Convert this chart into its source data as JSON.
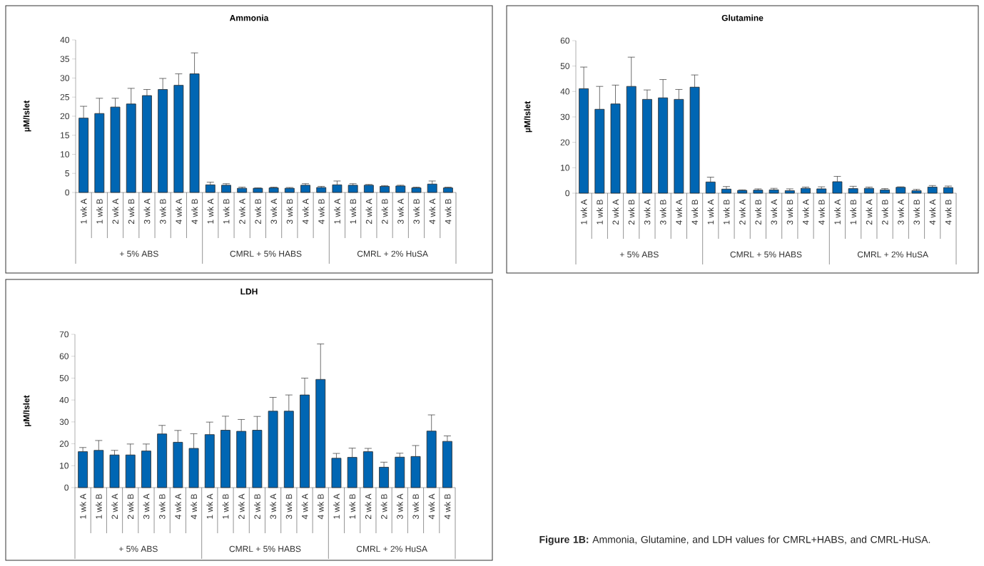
{
  "chart_data": [
    {
      "type": "bar",
      "title": "Ammonia",
      "ylabel": "µM/Islet",
      "color": "#0066b3",
      "ylim": [
        0,
        40
      ],
      "yticks": [
        0,
        5,
        10,
        15,
        20,
        25,
        30,
        35,
        40
      ],
      "categories": [
        "1 wk A",
        "1 wk B",
        "2 wk A",
        "2 wk B",
        "3 wk A",
        "3 wk B",
        "4 wk A",
        "4 wk B",
        "1 wk A",
        "1 wk B",
        "2 wk A",
        "2 wk B",
        "3 wk A",
        "3 wk B",
        "4 wk A",
        "4 wk B",
        "1 wk A",
        "1 wk B",
        "2 wk A",
        "2 wk B",
        "3 wk A",
        "3 wk B",
        "4 wk A",
        "4 wk B"
      ],
      "values": [
        19.5,
        20.7,
        22.4,
        23.2,
        25.4,
        27.0,
        28.1,
        31.1,
        2.0,
        1.9,
        1.1,
        1.1,
        1.2,
        1.1,
        1.9,
        1.3,
        2.0,
        1.9,
        1.9,
        1.6,
        1.7,
        1.2,
        2.2,
        1.2
      ],
      "errors": [
        [
          19.5,
          22.6
        ],
        [
          20.7,
          24.7
        ],
        [
          22.4,
          24.7
        ],
        [
          23.2,
          27.3
        ],
        [
          25.4,
          27.0
        ],
        [
          27.0,
          29.9
        ],
        [
          28.1,
          31.1
        ],
        [
          31.1,
          36.6
        ],
        [
          2.0,
          2.7
        ],
        [
          1.9,
          2.3
        ],
        [
          1.1,
          1.4
        ],
        [
          1.1,
          1.2
        ],
        [
          1.2,
          1.4
        ],
        [
          1.1,
          1.3
        ],
        [
          1.9,
          2.3
        ],
        [
          1.3,
          1.6
        ],
        [
          2.0,
          3.0
        ],
        [
          1.9,
          2.3
        ],
        [
          1.9,
          2.1
        ],
        [
          1.6,
          1.8
        ],
        [
          1.7,
          1.9
        ],
        [
          1.2,
          1.4
        ],
        [
          2.2,
          3.0
        ],
        [
          1.2,
          1.4
        ]
      ],
      "annotations": [
        "+ 5% ABS",
        "CMRL + 5% HABS",
        "CMRL + 2% HuSA"
      ]
    },
    {
      "type": "bar",
      "title": "Glutamine",
      "ylabel": "µM/Islet",
      "color": "#0066b3",
      "ylim": [
        0,
        60
      ],
      "yticks": [
        0,
        10,
        20,
        30,
        40,
        50,
        60
      ],
      "categories": [
        "1 wk A",
        "1 wk B",
        "2 wk A",
        "2 wk B",
        "3 wk A",
        "3 wk B",
        "4 wk A",
        "4 wk B",
        "1 wk A",
        "1 wk B",
        "2 wk A",
        "2 wk B",
        "3 wk A",
        "3 wk B",
        "4 wk A",
        "4 wk B",
        "1 wk A",
        "1 wk B",
        "2 wk A",
        "2 wk B",
        "3 wk A",
        "3 wk B",
        "4 wk A",
        "4 wk B"
      ],
      "values": [
        41.1,
        33.0,
        35.1,
        42.0,
        36.9,
        37.5,
        36.9,
        41.7,
        4.4,
        1.6,
        1.1,
        1.2,
        1.3,
        1.0,
        1.9,
        1.7,
        4.5,
        1.8,
        1.9,
        1.3,
        2.3,
        1.0,
        2.4,
        2.2
      ],
      "errors": [
        [
          41.1,
          49.6
        ],
        [
          33.0,
          42.0
        ],
        [
          35.1,
          42.5
        ],
        [
          42.0,
          53.5
        ],
        [
          36.9,
          40.6
        ],
        [
          37.5,
          44.7
        ],
        [
          36.9,
          40.8
        ],
        [
          41.7,
          46.5
        ],
        [
          4.4,
          6.3
        ],
        [
          1.6,
          2.6
        ],
        [
          1.1,
          1.3
        ],
        [
          1.2,
          1.7
        ],
        [
          1.3,
          1.9
        ],
        [
          1.0,
          1.7
        ],
        [
          1.9,
          2.4
        ],
        [
          1.7,
          2.5
        ],
        [
          4.5,
          6.6
        ],
        [
          1.8,
          2.7
        ],
        [
          1.9,
          2.4
        ],
        [
          1.3,
          1.8
        ],
        [
          2.3,
          2.5
        ],
        [
          1.0,
          1.5
        ],
        [
          2.4,
          3.0
        ],
        [
          2.2,
          2.8
        ]
      ],
      "annotations": [
        "+ 5% ABS",
        "CMRL + 5% HABS",
        "CMRL + 2% HuSA"
      ]
    },
    {
      "type": "bar",
      "title": "LDH",
      "ylabel": "µM/Islet",
      "color": "#0066b3",
      "ylim": [
        0,
        70
      ],
      "yticks": [
        0,
        10,
        20,
        30,
        40,
        50,
        60,
        70
      ],
      "categories": [
        "1 wk A",
        "1 wk B",
        "2 wk A",
        "2 wk B",
        "3 wk A",
        "3 wk B",
        "4 wk A",
        "4 wk B",
        "1 wk A",
        "1 wk B",
        "2 wk A",
        "2 wk B",
        "3 wk A",
        "3 wk B",
        "4 wk A",
        "4 wk B",
        "1 wk A",
        "1 wk B",
        "2 wk A",
        "2 wk B",
        "3 wk A",
        "3 wk B",
        "4 wk A",
        "4 wk B"
      ],
      "values": [
        16.4,
        17.0,
        14.9,
        14.9,
        16.7,
        24.5,
        20.7,
        17.9,
        24.2,
        26.2,
        25.7,
        26.2,
        34.9,
        34.9,
        42.3,
        49.4,
        13.4,
        13.8,
        16.4,
        9.3,
        13.9,
        14.2,
        25.8,
        21.1
      ],
      "errors": [
        [
          16.4,
          18.3
        ],
        [
          17.0,
          21.5
        ],
        [
          14.9,
          17.0
        ],
        [
          14.9,
          19.9
        ],
        [
          16.7,
          19.9
        ],
        [
          24.5,
          28.4
        ],
        [
          20.7,
          26.1
        ],
        [
          17.9,
          24.6
        ],
        [
          24.2,
          29.9
        ],
        [
          26.2,
          32.6
        ],
        [
          25.7,
          31.1
        ],
        [
          26.2,
          32.5
        ],
        [
          34.9,
          41.2
        ],
        [
          34.9,
          42.3
        ],
        [
          42.3,
          50.0
        ],
        [
          49.4,
          65.6
        ],
        [
          13.4,
          15.6
        ],
        [
          13.8,
          18.0
        ],
        [
          16.4,
          17.9
        ],
        [
          9.3,
          11.6
        ],
        [
          13.9,
          15.7
        ],
        [
          14.2,
          19.2
        ],
        [
          25.8,
          33.2
        ],
        [
          21.1,
          23.6
        ]
      ],
      "annotations": [
        "+ 5% ABS",
        "CMRL + 5% HABS",
        "CMRL + 2% HuSA"
      ]
    },
    {
      "type": "other",
      "annotations": [
        "**Figure 1B:** Ammonia, Glutamine, and LDH values for CMRL+HABS, and CMRL-HuSA."
      ]
    }
  ]
}
